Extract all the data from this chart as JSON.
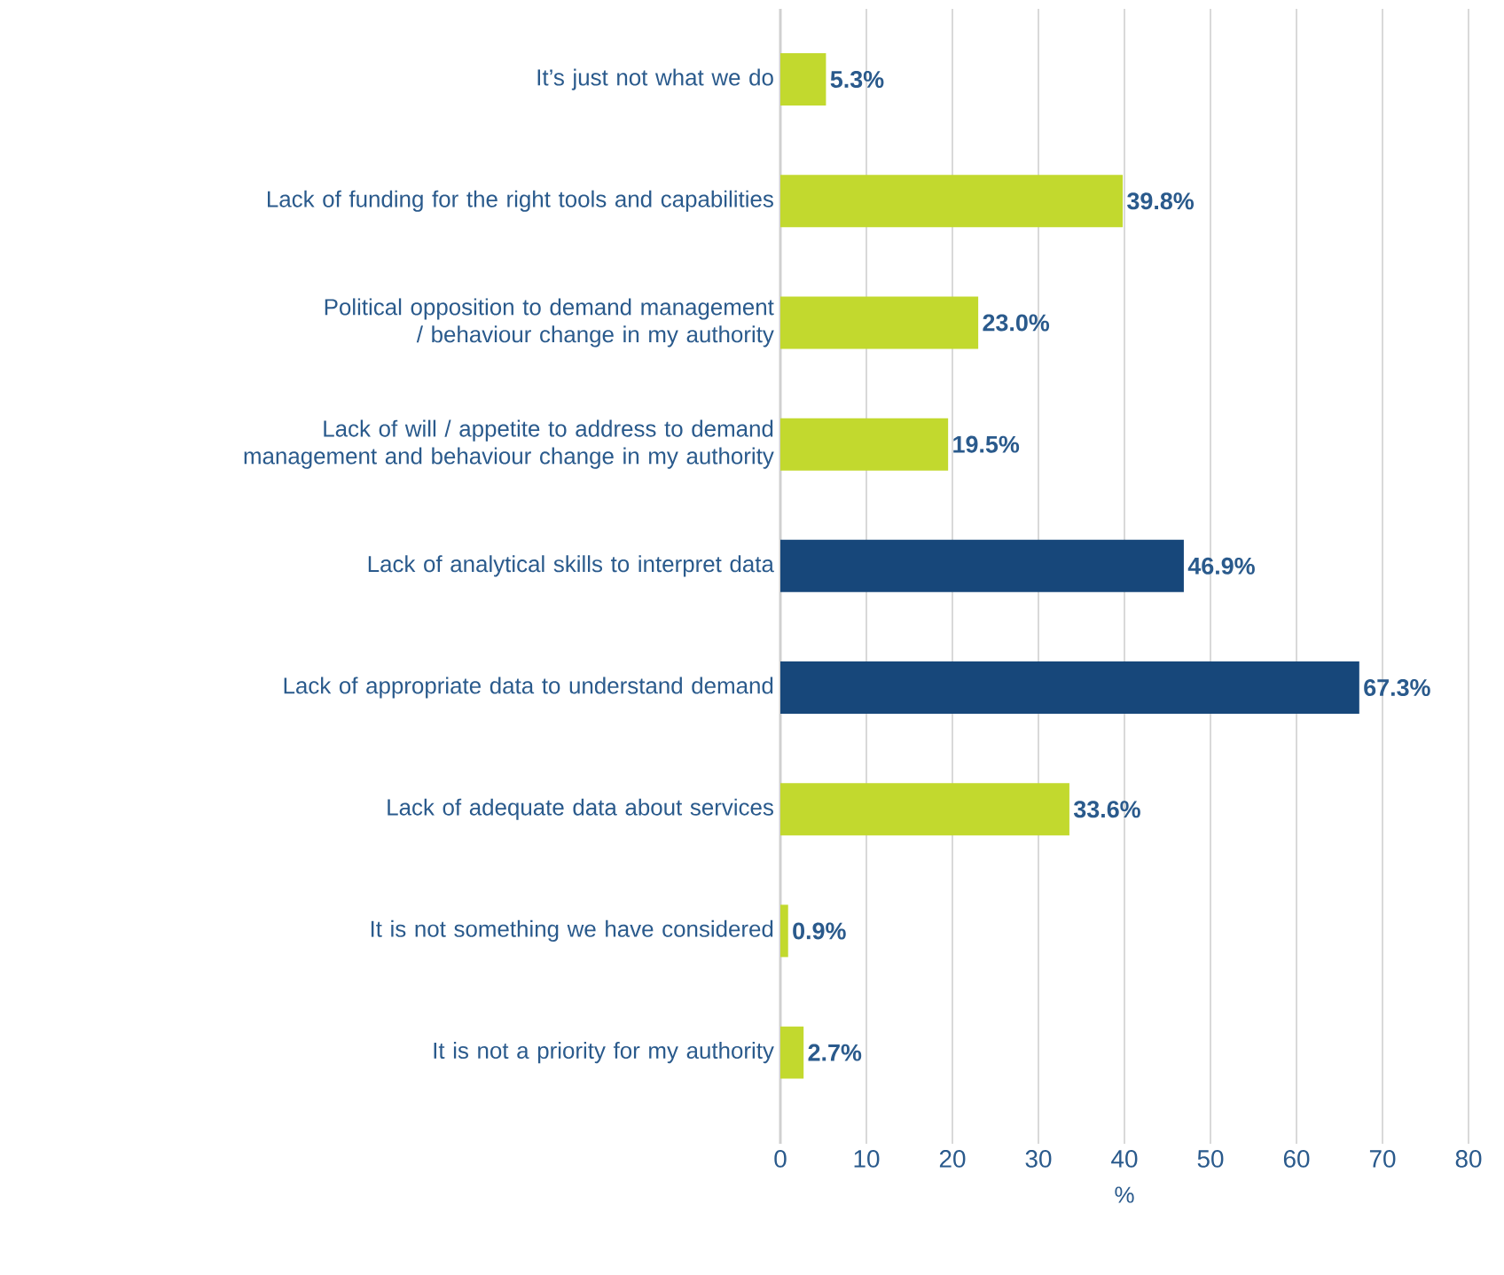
{
  "chart_data": {
    "type": "bar",
    "orientation": "horizontal",
    "xlabel": "%",
    "categories": [
      "It’s just not what we do",
      "Lack of funding for the right tools and capabilities",
      "Political opposition to demand management / behaviour change in my authority",
      "Lack of will / appetite to address  to demand management and behaviour change in my authority",
      "Lack of analytical skills to interpret data",
      "Lack of appropriate data to understand demand",
      "Lack of adequate data about services",
      "It is not something we have considered",
      "It is not a priority for my authority"
    ],
    "values": [
      5.3,
      39.8,
      23.0,
      19.5,
      46.9,
      67.3,
      33.6,
      0.9,
      2.7
    ],
    "value_labels": [
      "5.3%",
      "39.8%",
      "23.0%",
      "19.5%",
      "46.9%",
      "67.3%",
      "33.6%",
      "0.9%",
      "2.7%"
    ],
    "colors": [
      "#c2d92e",
      "#c2d92e",
      "#c2d92e",
      "#c2d92e",
      "#17477a",
      "#17477a",
      "#c2d92e",
      "#c2d92e",
      "#c2d92e"
    ],
    "xlim": [
      0,
      80
    ],
    "xticks": [
      0,
      10,
      20,
      30,
      40,
      50,
      60,
      70,
      80
    ],
    "grid": "x"
  }
}
